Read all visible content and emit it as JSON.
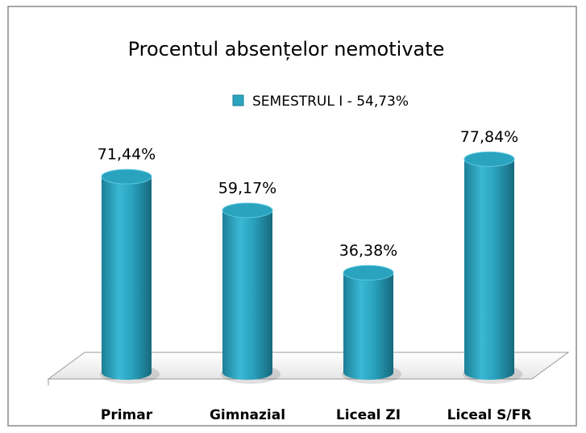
{
  "chart_data": {
    "type": "bar3d",
    "title": "Procentul absențelor nemotivate",
    "categories": [
      "Primar",
      "Gimnazial",
      "Liceal ZI",
      "Liceal S/FR"
    ],
    "series": [
      {
        "name": "SEMESTRUL I - 54,73%",
        "color": "#2aa3bf",
        "values": [
          71.44,
          59.17,
          36.38,
          77.84
        ],
        "value_labels": [
          "71,44%",
          "59,17%",
          "36,38%",
          "77,84%"
        ]
      }
    ],
    "legend": "top"
  }
}
